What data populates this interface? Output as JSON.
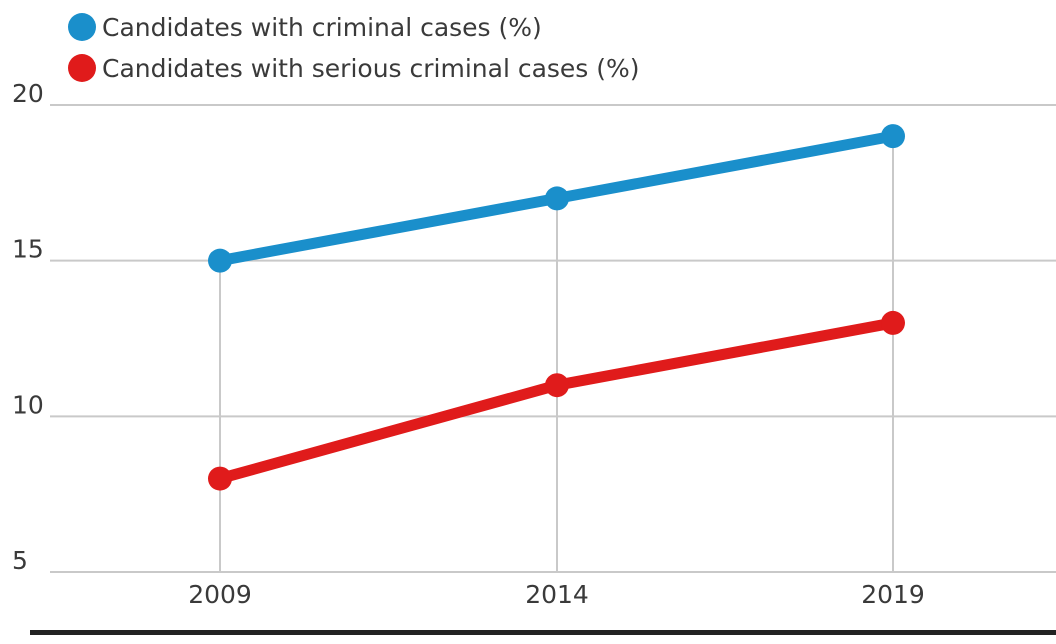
{
  "chart_data": {
    "type": "line",
    "categories": [
      "2009",
      "2014",
      "2019"
    ],
    "series": [
      {
        "name": "Candidates with criminal cases (%)",
        "values": [
          15,
          17,
          19
        ],
        "color": "#1a8fcb"
      },
      {
        "name": "Candidates with serious criminal cases (%)",
        "values": [
          8,
          11,
          13
        ],
        "color": "#e01b1b"
      }
    ],
    "ylim": [
      5,
      20
    ],
    "yticks": [
      "5",
      "10",
      "15",
      "20"
    ],
    "grid": true,
    "legend_position": "top-left",
    "colors": {
      "grid": "#c9c9c9",
      "baseline": "#222222",
      "text": "#3a3a3a"
    }
  }
}
